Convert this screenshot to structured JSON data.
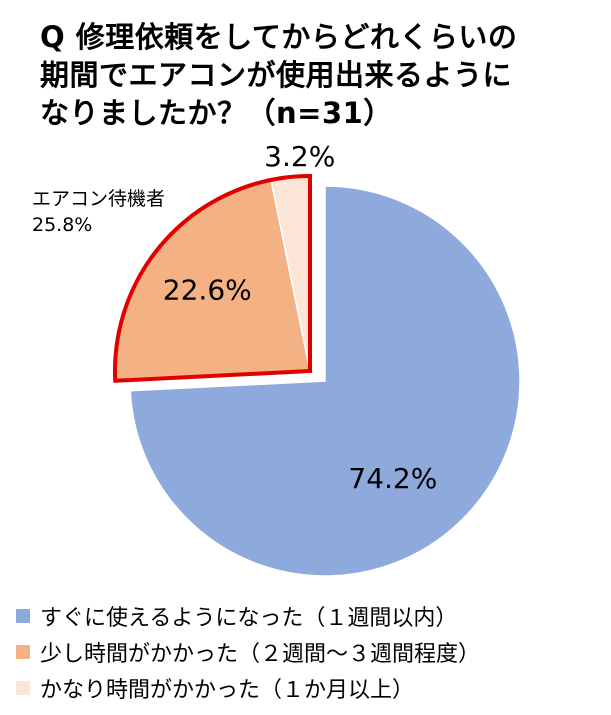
{
  "title_lines": [
    "Q 修理依頼をしてからどれくらいの",
    "期間でエアコンが使用出来るように",
    "なりましたか？（n=31）"
  ],
  "chart_data": {
    "type": "pie",
    "title": "Q 修理依頼をしてからどれくらいの期間でエアコンが使用出来るようになりましたか？（n=31）",
    "categories": [
      "すぐに使えるようになった（１週間以内）",
      "少し時間がかかった（２週間～３週間程度）",
      "かなり時間がかかった（１か月以上）"
    ],
    "values": [
      74.2,
      22.6,
      3.2
    ],
    "value_labels": [
      "74.2%",
      "22.6%",
      "3.2%"
    ],
    "colors": [
      "#8EA9DB",
      "#F4B183",
      "#FBE5D6"
    ],
    "exploded_group": {
      "label": "エアコン待機者",
      "value_label": "25.8%",
      "outline_color": "#E00000"
    },
    "legend_position": "bottom"
  }
}
